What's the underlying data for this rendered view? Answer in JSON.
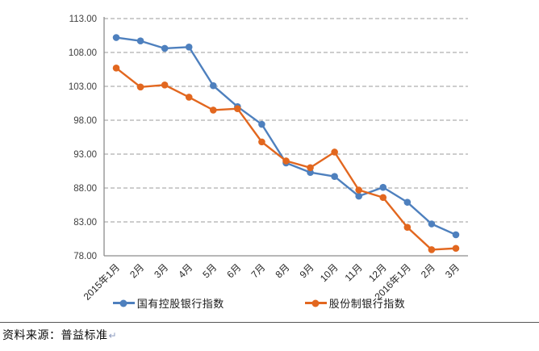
{
  "chart_data": {
    "type": "line",
    "title": "",
    "categories": [
      "2015年1月",
      "2月",
      "3月",
      "4月",
      "5月",
      "6月",
      "7月",
      "8月",
      "9月",
      "10月",
      "11月",
      "12月",
      "2016年1月",
      "2月",
      "3月"
    ],
    "series": [
      {
        "name": "国有控股银行指数",
        "color": "#4E80BE",
        "values": [
          110.2,
          109.7,
          108.6,
          108.8,
          103.1,
          100.0,
          97.4,
          91.7,
          90.3,
          89.7,
          86.8,
          88.1,
          85.9,
          82.7,
          81.1
        ]
      },
      {
        "name": "股份制银行指数",
        "color": "#E2671F",
        "values": [
          105.7,
          102.9,
          103.2,
          101.4,
          99.5,
          99.7,
          94.8,
          92.0,
          91.0,
          93.3,
          87.7,
          86.6,
          82.2,
          78.9,
          79.1
        ]
      }
    ],
    "ylim": [
      78,
      113
    ],
    "ytick_step": 5,
    "ytick_labels": [
      "113.00",
      "108.00",
      "103.00",
      "98.00",
      "93.00",
      "88.00",
      "83.00",
      "78.00"
    ],
    "grid": "horizontal-dashed",
    "legend_position": "bottom",
    "marker": "circle"
  },
  "styles": {
    "gridline_color": "#9B9B9B",
    "axis_color": "#8C8C8C",
    "tick_label_color": "#3F3F3F",
    "x_label_color": "#262626"
  },
  "footer": {
    "source_label": "资料来源：普益标准",
    "return_mark": "↵"
  }
}
